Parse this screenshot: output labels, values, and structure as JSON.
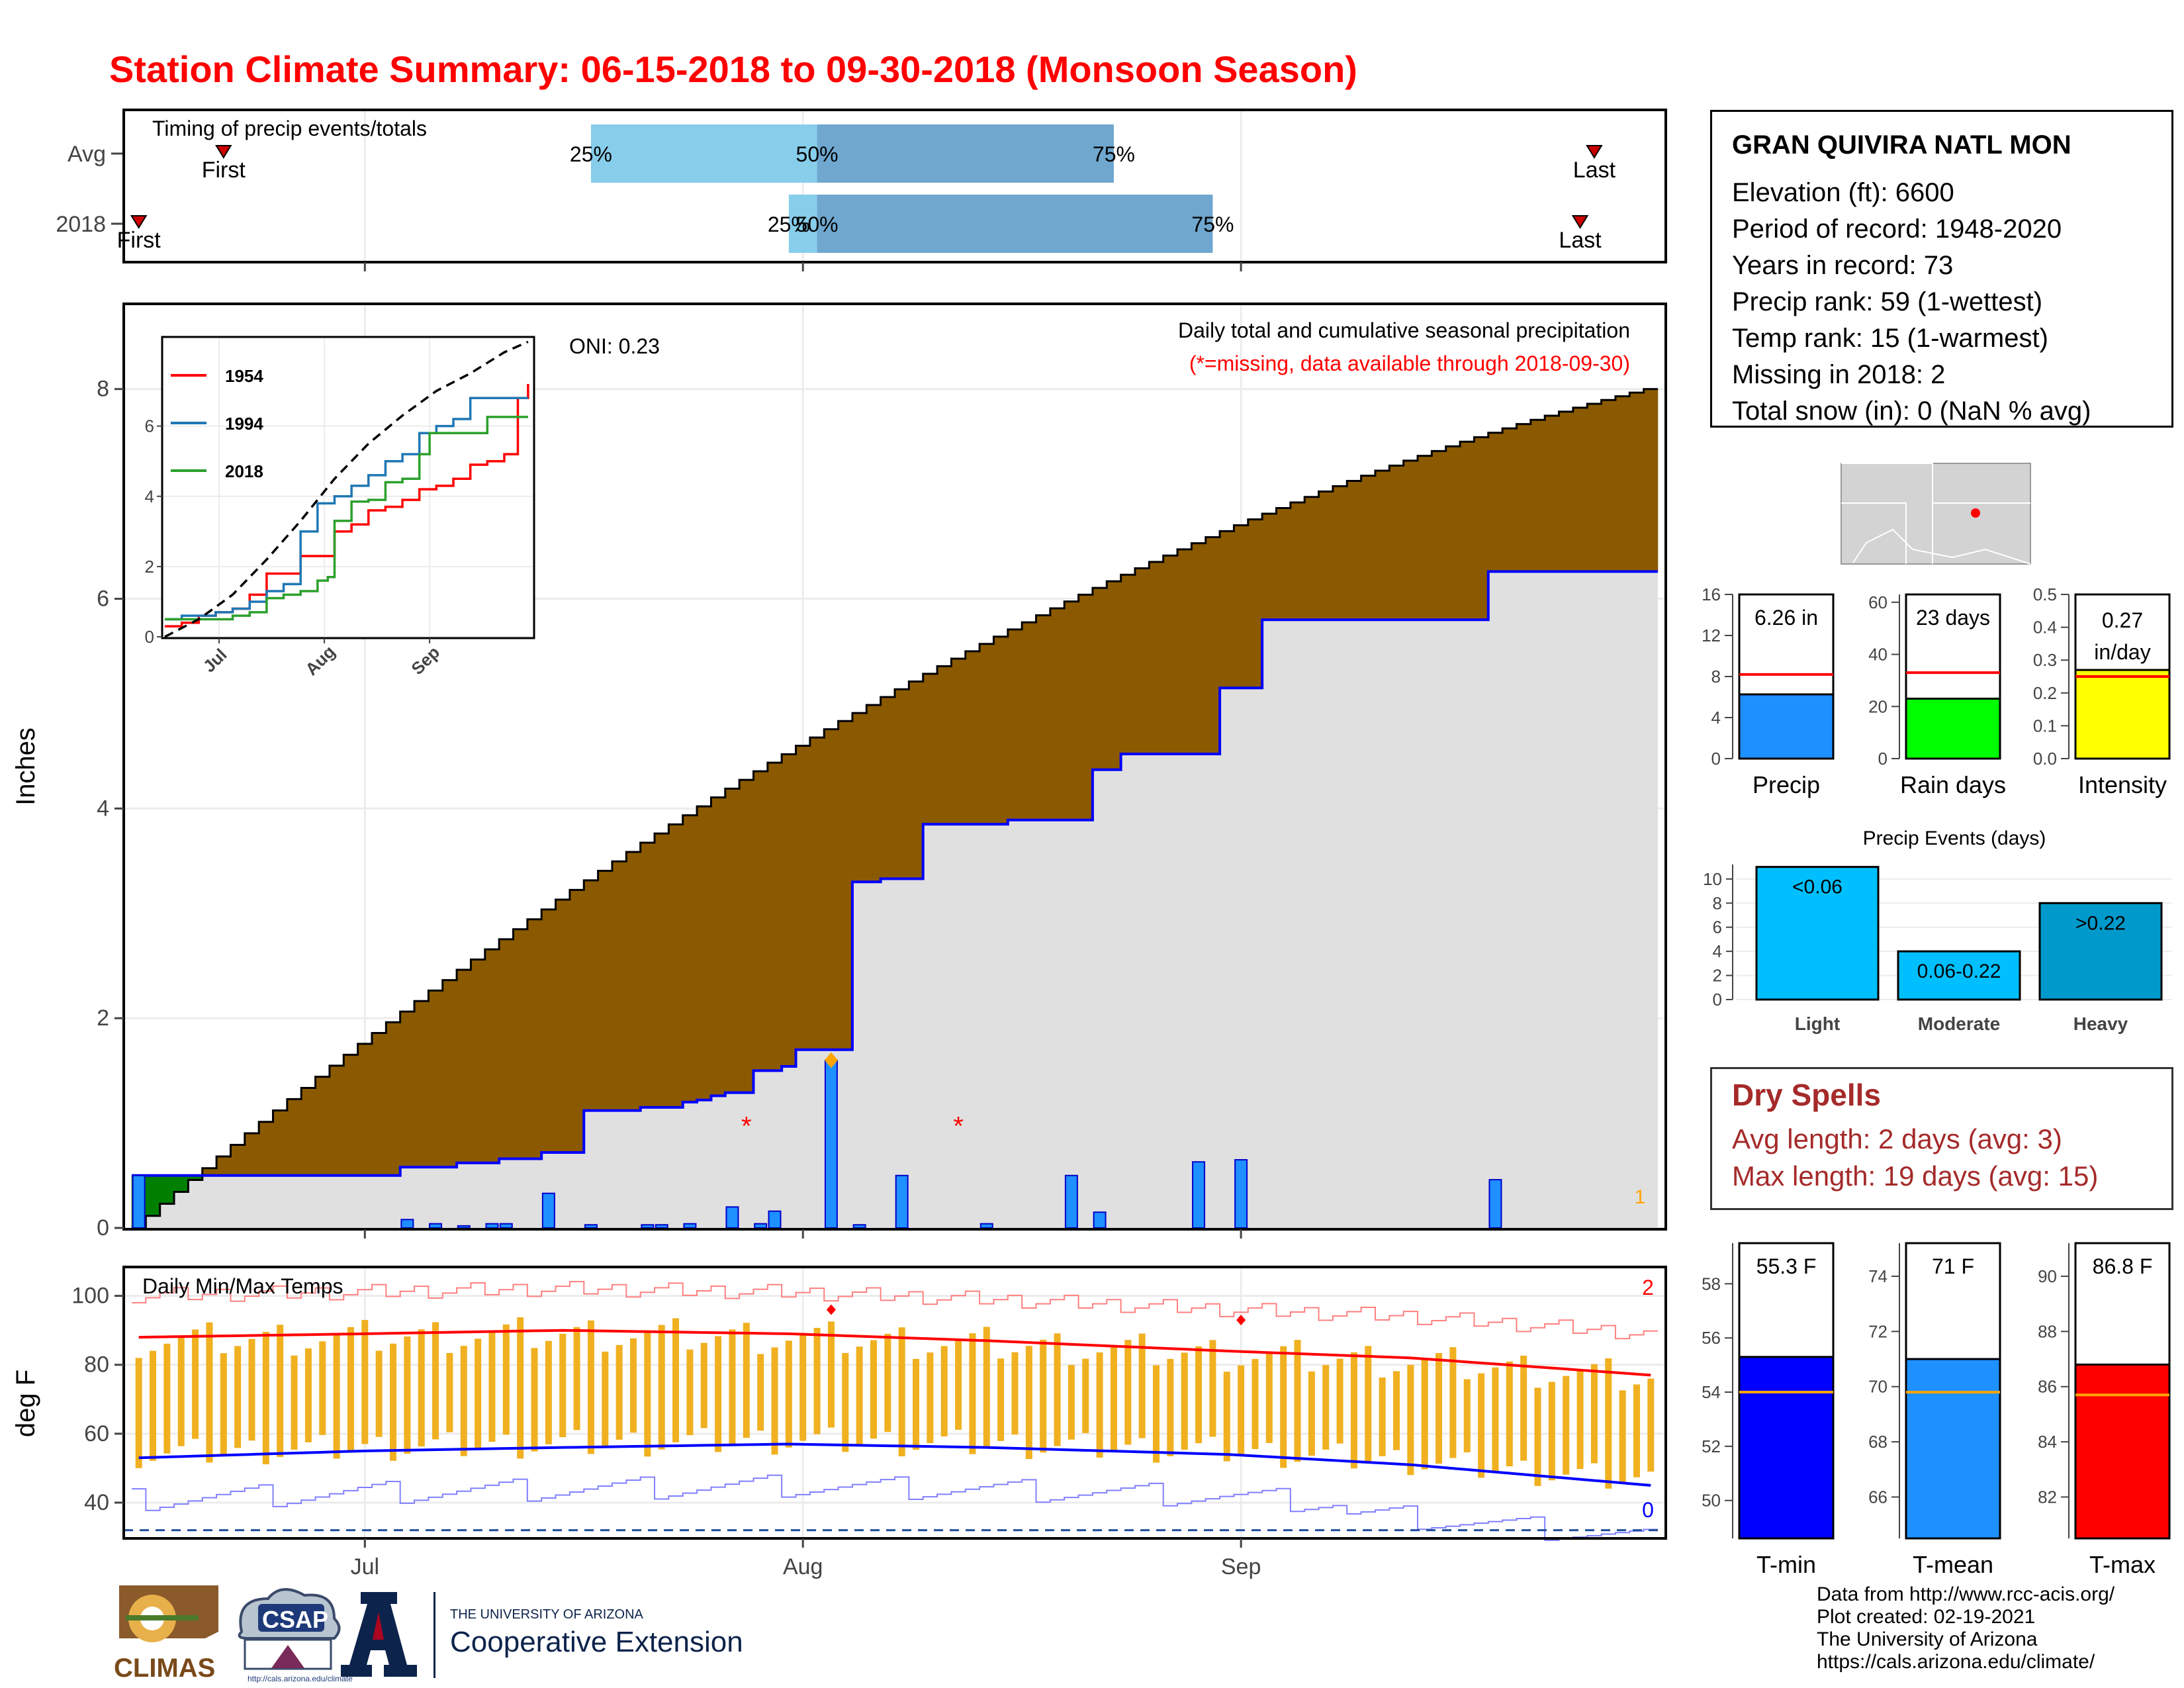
{
  "header": {
    "title": "Station Climate Summary: 06-15-2018 to 09-30-2018 (Monsoon Season)"
  },
  "station": {
    "name": "GRAN QUIVIRA NATL MON",
    "rows": [
      "Elevation (ft): 6600",
      "Period of record: 1948-2020",
      "Years in record: 73",
      "Precip rank: 59 (1-wettest)",
      "Temp rank: 15 (1-warmest)",
      "Missing in 2018: 2",
      "Total snow (in): 0 (NaN % avg)"
    ]
  },
  "dry_spells": {
    "title": "Dry Spells",
    "avg_length": "Avg length: 2 days (avg: 3)",
    "max_length": "Max length: 19 days (avg: 15)"
  },
  "credits": {
    "lines": [
      "Data from http://www.rcc-acis.org/",
      "Plot created: 02-19-2021",
      "The University of Arizona",
      "https://cals.arizona.edu/climate/"
    ]
  },
  "logos": {
    "climas": "CLIMAS",
    "csap": "CSAP",
    "csap_url": "http://cals.arizona.edu/climate",
    "ua_small": "THE UNIVERSITY OF ARIZONA",
    "ua_big": "Cooperative Extension"
  },
  "colors": {
    "title": "#ff0000",
    "avg_cum_fill": "#8b5a00",
    "deficit_fill": "#007f00",
    "cum_2018_fill": "#e0e0e0",
    "cum_2018_line": "#0000ff",
    "daily_bar": "#1e90ff",
    "temp_bar": "#f0b020",
    "tmax_avg": "#ff0000",
    "tmin_avg": "#0000ff",
    "quartile_light": "#87ceeb",
    "quartile_dark": "#6fa7cf",
    "precip_bar": "#1e90ff",
    "raindays_bar": "#00ff00",
    "intensity_bar": "#ffff00",
    "event_light": "#00bfff",
    "event_moderate": "#00bfff",
    "event_heavy": "#0099cc",
    "tmin_bar": "#0000ff",
    "tmean_bar": "#1e90ff",
    "tmax_bar": "#ff0000"
  },
  "chart_data": [
    {
      "id": "timing",
      "type": "bar",
      "title": "Timing of precip events/totals",
      "rows": [
        {
          "label": "Avg",
          "first": "06-21",
          "q25": "07-17",
          "q50": "08-02",
          "q75": "08-23",
          "last": "09-26",
          "first_label": "First",
          "last_label": "Last"
        },
        {
          "label": "2018",
          "first": "06-15",
          "q25": "07-31",
          "q50": "08-02",
          "q75": "08-30",
          "last": "09-25",
          "first_label": "First",
          "last_label": "Last"
        }
      ],
      "quartile_labels": [
        "25%",
        "50%",
        "75%"
      ]
    },
    {
      "id": "precip",
      "type": "area",
      "title": "Daily total and cumulative seasonal precipitation",
      "subtitle": "(*=missing, data available through 2018-09-30)",
      "ylabel": "Inches",
      "xticks": [
        "Jul",
        "Aug",
        "Sep"
      ],
      "yticks": [
        0,
        2,
        4,
        6,
        8
      ],
      "ylim": [
        0,
        8.8
      ],
      "oni": "ONI: 0.23",
      "corner_label": "1",
      "avg_cumulative_end": 8.0,
      "cum_2018_steps": [
        {
          "date": "06-15",
          "value": 0.5
        },
        {
          "date": "07-04",
          "value": 0.58
        },
        {
          "date": "07-08",
          "value": 0.62
        },
        {
          "date": "07-11",
          "value": 0.66
        },
        {
          "date": "07-14",
          "value": 0.72
        },
        {
          "date": "07-17",
          "value": 1.12
        },
        {
          "date": "07-21",
          "value": 1.15
        },
        {
          "date": "07-24",
          "value": 1.2
        },
        {
          "date": "07-25",
          "value": 1.22
        },
        {
          "date": "07-26",
          "value": 1.26
        },
        {
          "date": "07-27",
          "value": 1.29
        },
        {
          "date": "07-29",
          "value": 1.5
        },
        {
          "date": "07-31",
          "value": 1.54
        },
        {
          "date": "08-01",
          "value": 1.7
        },
        {
          "date": "08-05",
          "value": 3.3
        },
        {
          "date": "08-07",
          "value": 3.33
        },
        {
          "date": "08-10",
          "value": 3.85
        },
        {
          "date": "08-16",
          "value": 3.89
        },
        {
          "date": "08-22",
          "value": 4.37
        },
        {
          "date": "08-24",
          "value": 4.52
        },
        {
          "date": "08-31",
          "value": 5.15
        },
        {
          "date": "09-03",
          "value": 5.8
        },
        {
          "date": "09-19",
          "value": 6.26
        }
      ],
      "daily_2018": [
        {
          "date": "06-15",
          "value": 0.5
        },
        {
          "date": "07-04",
          "value": 0.08
        },
        {
          "date": "07-06",
          "value": 0.04
        },
        {
          "date": "07-08",
          "value": 0.02
        },
        {
          "date": "07-10",
          "value": 0.04
        },
        {
          "date": "07-11",
          "value": 0.04
        },
        {
          "date": "07-14",
          "value": 0.33
        },
        {
          "date": "07-17",
          "value": 0.03
        },
        {
          "date": "07-21",
          "value": 0.03
        },
        {
          "date": "07-22",
          "value": 0.03
        },
        {
          "date": "07-24",
          "value": 0.04
        },
        {
          "date": "07-27",
          "value": 0.2
        },
        {
          "date": "07-29",
          "value": 0.04
        },
        {
          "date": "07-30",
          "value": 0.16
        },
        {
          "date": "08-03",
          "value": 1.6
        },
        {
          "date": "08-05",
          "value": 0.03
        },
        {
          "date": "08-08",
          "value": 0.5
        },
        {
          "date": "08-14",
          "value": 0.04
        },
        {
          "date": "08-20",
          "value": 0.5
        },
        {
          "date": "08-22",
          "value": 0.15
        },
        {
          "date": "08-29",
          "value": 0.63
        },
        {
          "date": "09-01",
          "value": 0.65
        },
        {
          "date": "09-19",
          "value": 0.46
        }
      ],
      "missing": [
        "07-28",
        "08-12"
      ],
      "max_marker": {
        "date": "08-03",
        "value": 1.6
      }
    },
    {
      "id": "inset",
      "type": "line",
      "xticks": [
        "Jul",
        "Aug",
        "Sep"
      ],
      "yticks": [
        0,
        2,
        4,
        6
      ],
      "ylim": [
        0,
        8.5
      ],
      "series": [
        {
          "name": "1954",
          "color": "#ff0000",
          "points": [
            [
              0,
              0.3
            ],
            [
              5,
              0.4
            ],
            [
              10,
              0.6
            ],
            [
              15,
              0.7
            ],
            [
              20,
              0.8
            ],
            [
              25,
              1.2
            ],
            [
              30,
              1.8
            ],
            [
              35,
              1.8
            ],
            [
              40,
              2.3
            ],
            [
              45,
              2.3
            ],
            [
              50,
              3.0
            ],
            [
              55,
              3.2
            ],
            [
              60,
              3.6
            ],
            [
              65,
              3.7
            ],
            [
              70,
              3.9
            ],
            [
              75,
              4.2
            ],
            [
              80,
              4.3
            ],
            [
              85,
              4.5
            ],
            [
              90,
              4.9
            ],
            [
              95,
              5.0
            ],
            [
              100,
              5.2
            ],
            [
              104,
              6.8
            ],
            [
              107,
              7.2
            ]
          ]
        },
        {
          "name": "1994",
          "color": "#1f77b4",
          "points": [
            [
              0,
              0.5
            ],
            [
              5,
              0.6
            ],
            [
              10,
              0.6
            ],
            [
              15,
              0.7
            ],
            [
              20,
              0.8
            ],
            [
              25,
              1.0
            ],
            [
              30,
              1.3
            ],
            [
              35,
              1.5
            ],
            [
              40,
              3.0
            ],
            [
              45,
              3.8
            ],
            [
              50,
              4.0
            ],
            [
              55,
              4.3
            ],
            [
              60,
              4.6
            ],
            [
              65,
              5.0
            ],
            [
              70,
              5.2
            ],
            [
              75,
              5.8
            ],
            [
              80,
              6.0
            ],
            [
              85,
              6.2
            ],
            [
              90,
              6.8
            ],
            [
              95,
              6.8
            ],
            [
              100,
              6.8
            ],
            [
              107,
              6.8
            ]
          ]
        },
        {
          "name": "2018",
          "color": "#2ca02c",
          "points": [
            [
              0,
              0.5
            ],
            [
              10,
              0.5
            ],
            [
              20,
              0.6
            ],
            [
              25,
              0.7
            ],
            [
              30,
              1.1
            ],
            [
              35,
              1.2
            ],
            [
              40,
              1.3
            ],
            [
              45,
              1.6
            ],
            [
              48,
              1.7
            ],
            [
              50,
              3.3
            ],
            [
              55,
              3.85
            ],
            [
              60,
              3.9
            ],
            [
              65,
              4.4
            ],
            [
              70,
              4.5
            ],
            [
              75,
              5.2
            ],
            [
              78,
              5.8
            ],
            [
              90,
              5.8
            ],
            [
              95,
              6.26
            ],
            [
              107,
              6.26
            ]
          ]
        },
        {
          "name": "Avg",
          "color": "#000000",
          "points": [
            [
              0,
              0
            ],
            [
              10,
              0.5
            ],
            [
              20,
              1.2
            ],
            [
              30,
              2.2
            ],
            [
              40,
              3.3
            ],
            [
              50,
              4.5
            ],
            [
              60,
              5.5
            ],
            [
              70,
              6.3
            ],
            [
              80,
              7.0
            ],
            [
              90,
              7.5
            ],
            [
              100,
              8.1
            ],
            [
              107,
              8.4
            ]
          ]
        }
      ]
    },
    {
      "id": "temps",
      "type": "bar",
      "title": "Daily Min/Max Temps",
      "ylabel": "deg F",
      "xticks": [
        "Jul",
        "Aug",
        "Sep"
      ],
      "yticks": [
        40,
        60,
        80,
        100
      ],
      "ylim": [
        30,
        108
      ],
      "tmax_avg": [
        [
          0,
          88
        ],
        [
          16,
          89
        ],
        [
          30,
          90
        ],
        [
          46,
          89
        ],
        [
          60,
          87
        ],
        [
          77,
          84
        ],
        [
          90,
          82
        ],
        [
          107,
          77
        ]
      ],
      "tmin_avg": [
        [
          0,
          53
        ],
        [
          16,
          55
        ],
        [
          30,
          56
        ],
        [
          46,
          57
        ],
        [
          60,
          56
        ],
        [
          77,
          54
        ],
        [
          90,
          51
        ],
        [
          107,
          45
        ]
      ],
      "freeze_line": 32,
      "corner_top": "2",
      "corner_bottom": "0",
      "max_markers": [
        {
          "day": 49,
          "value": 96
        },
        {
          "day": 78,
          "value": 93
        }
      ]
    },
    {
      "id": "precip_total",
      "type": "bar",
      "categories": [
        "Precip"
      ],
      "values": [
        6.26
      ],
      "avg": 8.2,
      "data_label": "6.26 in",
      "yticks": [
        0,
        4,
        8,
        12,
        16
      ],
      "ylim": [
        0,
        16
      ]
    },
    {
      "id": "rain_days",
      "type": "bar",
      "categories": [
        "Rain days"
      ],
      "values": [
        23
      ],
      "avg": 33,
      "data_label": "23 days",
      "yticks": [
        0,
        20,
        40,
        60
      ],
      "ylim": [
        0,
        63
      ]
    },
    {
      "id": "intensity",
      "type": "bar",
      "categories": [
        "Intensity"
      ],
      "values": [
        0.27
      ],
      "avg": 0.25,
      "data_label": "0.27 in/day",
      "yticks": [
        0.0,
        0.1,
        0.2,
        0.3,
        0.4,
        0.5
      ],
      "ylim": [
        0,
        0.5
      ]
    },
    {
      "id": "precip_events",
      "type": "bar",
      "title": "Precip Events (days)",
      "categories": [
        "Light",
        "Moderate",
        "Heavy"
      ],
      "bin_labels": [
        "<0.06",
        "0.06-0.22",
        ">0.22"
      ],
      "values": [
        11,
        4,
        8
      ],
      "yticks": [
        0,
        2,
        4,
        6,
        8,
        10
      ],
      "ylim": [
        0,
        11.2
      ]
    },
    {
      "id": "tmin",
      "type": "bar",
      "categories": [
        "T-min"
      ],
      "values": [
        55.3
      ],
      "avg": 54.0,
      "data_label": "55.3 F",
      "yticks": [
        50,
        52,
        54,
        56,
        58
      ],
      "ylim": [
        48.6,
        59.5
      ]
    },
    {
      "id": "tmean",
      "type": "bar",
      "categories": [
        "T-mean"
      ],
      "values": [
        71.0
      ],
      "avg": 69.8,
      "data_label": "71 F",
      "yticks": [
        66,
        68,
        70,
        72,
        74
      ],
      "ylim": [
        64.5,
        75.2
      ]
    },
    {
      "id": "tmax",
      "type": "bar",
      "categories": [
        "T-max"
      ],
      "values": [
        86.8
      ],
      "avg": 85.7,
      "data_label": "86.8 F",
      "yticks": [
        82,
        84,
        86,
        88,
        90
      ],
      "ylim": [
        80.5,
        91.2
      ]
    }
  ]
}
